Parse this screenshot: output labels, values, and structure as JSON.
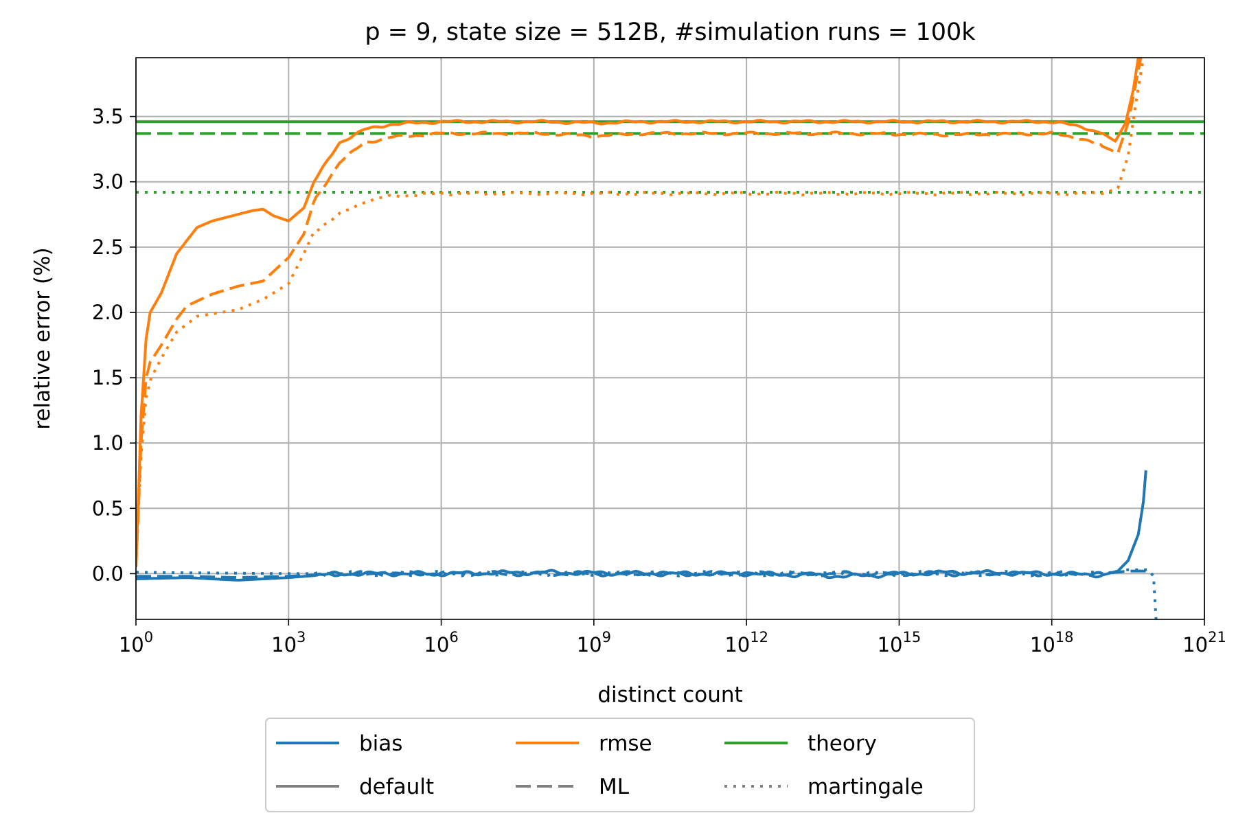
{
  "chart_data": {
    "type": "line",
    "title": "p = 9, state size = 512B, #simulation runs = 100k",
    "xlabel": "distinct count",
    "ylabel": "relative error (%)",
    "xscale": "log10",
    "xlim_log10": [
      0,
      21
    ],
    "ylim": [
      -0.35,
      3.95
    ],
    "x_ticks": [
      {
        "base": "10",
        "exp": "0"
      },
      {
        "base": "10",
        "exp": "3"
      },
      {
        "base": "10",
        "exp": "6"
      },
      {
        "base": "10",
        "exp": "9"
      },
      {
        "base": "10",
        "exp": "12"
      },
      {
        "base": "10",
        "exp": "15"
      },
      {
        "base": "10",
        "exp": "18"
      },
      {
        "base": "10",
        "exp": "21"
      }
    ],
    "y_ticks": [
      "0.0",
      "0.5",
      "1.0",
      "1.5",
      "2.0",
      "2.5",
      "3.0",
      "3.5"
    ],
    "grid": true,
    "colors": {
      "bias": "#1f77b4",
      "rmse": "#ff7f0e",
      "theory": "#2ca02c",
      "legend_gray": "#808080"
    },
    "theory_lines": [
      {
        "name": "theory default",
        "value": 3.46,
        "style": "solid"
      },
      {
        "name": "theory ML",
        "value": 3.37,
        "style": "dashed"
      },
      {
        "name": "theory martingale",
        "value": 2.92,
        "style": "dotted"
      }
    ],
    "series": [
      {
        "name": "rmse default",
        "quantity": "rmse",
        "estimator": "default",
        "style": "solid",
        "points": [
          [
            0,
            0.05
          ],
          [
            0.05,
            0.6
          ],
          [
            0.1,
            1.2
          ],
          [
            0.2,
            1.8
          ],
          [
            0.28,
            2.0
          ],
          [
            0.5,
            2.15
          ],
          [
            0.8,
            2.45
          ],
          [
            1.2,
            2.65
          ],
          [
            1.5,
            2.7
          ],
          [
            2.0,
            2.75
          ],
          [
            2.3,
            2.78
          ],
          [
            2.5,
            2.79
          ],
          [
            2.7,
            2.74
          ],
          [
            3.0,
            2.7
          ],
          [
            3.3,
            2.8
          ],
          [
            3.5,
            3.0
          ],
          [
            4.0,
            3.3
          ],
          [
            4.5,
            3.4
          ],
          [
            5.0,
            3.44
          ],
          [
            6.0,
            3.46
          ],
          [
            8.0,
            3.46
          ],
          [
            9.0,
            3.45
          ],
          [
            10.0,
            3.46
          ],
          [
            12.0,
            3.46
          ],
          [
            14.0,
            3.46
          ],
          [
            16.0,
            3.46
          ],
          [
            18.0,
            3.46
          ],
          [
            18.6,
            3.42
          ],
          [
            19.0,
            3.37
          ],
          [
            19.25,
            3.31
          ],
          [
            19.45,
            3.45
          ],
          [
            19.6,
            3.7
          ],
          [
            19.7,
            3.95
          ]
        ]
      },
      {
        "name": "rmse ML",
        "quantity": "rmse",
        "estimator": "ML",
        "style": "dashed",
        "points": [
          [
            0,
            0.05
          ],
          [
            0.05,
            0.5
          ],
          [
            0.1,
            1.0
          ],
          [
            0.2,
            1.5
          ],
          [
            0.28,
            1.62
          ],
          [
            0.5,
            1.75
          ],
          [
            0.8,
            1.95
          ],
          [
            1.0,
            2.05
          ],
          [
            1.5,
            2.14
          ],
          [
            2.0,
            2.2
          ],
          [
            2.5,
            2.24
          ],
          [
            3.0,
            2.42
          ],
          [
            3.3,
            2.6
          ],
          [
            3.5,
            2.85
          ],
          [
            4.0,
            3.15
          ],
          [
            4.5,
            3.3
          ],
          [
            5.0,
            3.34
          ],
          [
            6.0,
            3.37
          ],
          [
            8.0,
            3.37
          ],
          [
            9.0,
            3.35
          ],
          [
            10.0,
            3.37
          ],
          [
            12.0,
            3.37
          ],
          [
            14.0,
            3.37
          ],
          [
            16.0,
            3.36
          ],
          [
            18.0,
            3.37
          ],
          [
            18.6,
            3.33
          ],
          [
            19.0,
            3.27
          ],
          [
            19.3,
            3.22
          ],
          [
            19.5,
            3.45
          ],
          [
            19.65,
            3.75
          ],
          [
            19.75,
            3.95
          ]
        ]
      },
      {
        "name": "rmse martingale",
        "quantity": "rmse",
        "estimator": "martingale",
        "style": "dotted",
        "points": [
          [
            0,
            0.05
          ],
          [
            0.05,
            0.5
          ],
          [
            0.1,
            0.9
          ],
          [
            0.2,
            1.35
          ],
          [
            0.3,
            1.5
          ],
          [
            0.5,
            1.65
          ],
          [
            0.8,
            1.85
          ],
          [
            1.2,
            1.97
          ],
          [
            2.0,
            2.02
          ],
          [
            2.5,
            2.1
          ],
          [
            3.0,
            2.22
          ],
          [
            3.3,
            2.45
          ],
          [
            3.5,
            2.62
          ],
          [
            4.0,
            2.75
          ],
          [
            4.5,
            2.85
          ],
          [
            5.0,
            2.89
          ],
          [
            6.0,
            2.91
          ],
          [
            9.0,
            2.91
          ],
          [
            12.0,
            2.91
          ],
          [
            15.0,
            2.91
          ],
          [
            18.0,
            2.91
          ],
          [
            19.0,
            2.91
          ],
          [
            19.3,
            2.95
          ],
          [
            19.5,
            3.2
          ],
          [
            19.65,
            3.6
          ],
          [
            19.8,
            3.95
          ]
        ]
      },
      {
        "name": "bias default",
        "quantity": "bias",
        "estimator": "default",
        "style": "solid",
        "points": [
          [
            0,
            -0.04
          ],
          [
            1.0,
            -0.03
          ],
          [
            2.0,
            -0.05
          ],
          [
            3.0,
            -0.03
          ],
          [
            4.0,
            0.0
          ],
          [
            6.0,
            0.0
          ],
          [
            8.0,
            0.01
          ],
          [
            10.0,
            0.0
          ],
          [
            12.0,
            0.0
          ],
          [
            14.0,
            -0.02
          ],
          [
            16.0,
            0.01
          ],
          [
            18.0,
            0.0
          ],
          [
            19.0,
            -0.01
          ],
          [
            19.3,
            0.02
          ],
          [
            19.5,
            0.1
          ],
          [
            19.7,
            0.3
          ],
          [
            19.8,
            0.55
          ],
          [
            19.85,
            0.79
          ]
        ]
      },
      {
        "name": "bias ML",
        "quantity": "bias",
        "estimator": "ML",
        "style": "dashed",
        "points": [
          [
            0,
            -0.02
          ],
          [
            1.0,
            -0.02
          ],
          [
            2.0,
            -0.03
          ],
          [
            3.0,
            -0.02
          ],
          [
            4.0,
            0.0
          ],
          [
            10.0,
            0.0
          ],
          [
            16.0,
            0.0
          ],
          [
            19.0,
            0.0
          ],
          [
            19.5,
            0.02
          ],
          [
            19.85,
            0.02
          ]
        ]
      },
      {
        "name": "bias martingale",
        "quantity": "bias",
        "estimator": "martingale",
        "style": "dotted",
        "points": [
          [
            0,
            0.01
          ],
          [
            3.0,
            0.0
          ],
          [
            10.0,
            0.0
          ],
          [
            19.0,
            0.0
          ],
          [
            19.5,
            0.03
          ],
          [
            19.9,
            0.03
          ],
          [
            20.0,
            -0.02
          ],
          [
            20.05,
            -0.35
          ]
        ]
      }
    ],
    "legend": {
      "placement": "below-center",
      "columns": 3,
      "entries": [
        {
          "label": "bias",
          "color": "#1f77b4",
          "style": "solid"
        },
        {
          "label": "rmse",
          "color": "#ff7f0e",
          "style": "solid"
        },
        {
          "label": "theory",
          "color": "#2ca02c",
          "style": "solid"
        },
        {
          "label": "default",
          "color": "#808080",
          "style": "solid"
        },
        {
          "label": "ML",
          "color": "#808080",
          "style": "dashed"
        },
        {
          "label": "martingale",
          "color": "#808080",
          "style": "dotted"
        }
      ]
    }
  }
}
